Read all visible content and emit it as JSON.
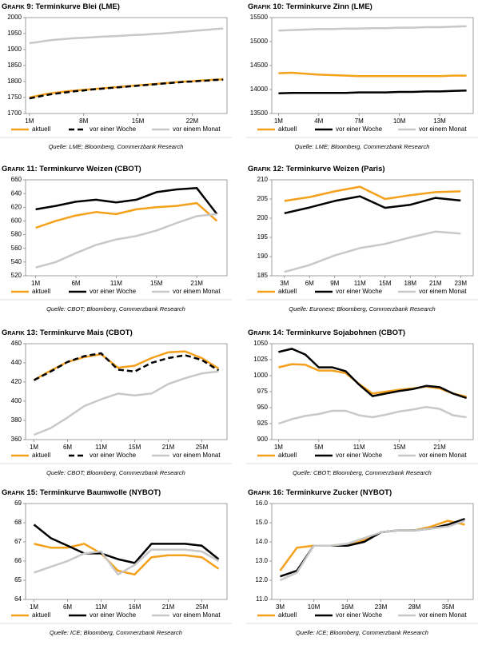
{
  "chart_data": [
    {
      "type": "line",
      "label": "Grafik 9:",
      "title": "Terminkurve Blei (LME)",
      "source": "Quelle: LME; Bloomberg, Commerzbank Research",
      "categories": [
        "1M",
        null,
        null,
        null,
        null,
        null,
        null,
        "8M",
        null,
        null,
        null,
        null,
        null,
        null,
        "15M",
        null,
        null,
        null,
        null,
        null,
        null,
        "22M",
        null,
        null,
        null,
        null
      ],
      "ylim": [
        1700,
        2000
      ],
      "yticks": [
        1700,
        1750,
        1800,
        1850,
        1900,
        1950,
        2000
      ],
      "series": [
        {
          "name": "aktuell",
          "color": "#f5a01a",
          "values": [
            1750,
            1755,
            1760,
            1764,
            1767,
            1770,
            1772,
            1774,
            1776,
            1778,
            1780,
            1782,
            1784,
            1786,
            1788,
            1790,
            1792,
            1794,
            1796,
            1798,
            1800,
            1801,
            1803,
            1804,
            1806,
            1807
          ]
        },
        {
          "name": "vor einer Woche",
          "color": "#000000",
          "dash": true,
          "values": [
            1747,
            1752,
            1757,
            1761,
            1764,
            1767,
            1770,
            1772,
            1775,
            1777,
            1779,
            1781,
            1783,
            1785,
            1787,
            1789,
            1791,
            1793,
            1795,
            1797,
            1799,
            1800,
            1802,
            1803,
            1805,
            1806
          ]
        },
        {
          "name": "vor einem Monat",
          "color": "#c8c8c8",
          "values": [
            1920,
            1923,
            1927,
            1930,
            1932,
            1934,
            1936,
            1937,
            1938,
            1940,
            1941,
            1942,
            1943,
            1945,
            1946,
            1947,
            1949,
            1950,
            1952,
            1954,
            1956,
            1958,
            1960,
            1962,
            1964,
            1966
          ]
        }
      ]
    },
    {
      "type": "line",
      "label": "Grafik 10:",
      "title": "Terminkurve Zinn (LME)",
      "source": "Quelle: LME; Bloomberg, Commerzbank Research",
      "categories": [
        "1M",
        null,
        null,
        "4M",
        null,
        null,
        "7M",
        null,
        null,
        "10M",
        null,
        null,
        "13M",
        null,
        null
      ],
      "ylim": [
        13500,
        15500
      ],
      "yticks": [
        13500,
        14000,
        14500,
        15000,
        15500
      ],
      "series": [
        {
          "name": "aktuell",
          "color": "#f5a01a",
          "values": [
            14340,
            14350,
            14330,
            14310,
            14300,
            14290,
            14280,
            14280,
            14280,
            14280,
            14280,
            14280,
            14280,
            14290,
            14290
          ]
        },
        {
          "name": "vor einer Woche",
          "color": "#000000",
          "values": [
            13920,
            13930,
            13930,
            13930,
            13930,
            13930,
            13940,
            13940,
            13940,
            13950,
            13950,
            13960,
            13960,
            13970,
            13980
          ]
        },
        {
          "name": "vor einem Monat",
          "color": "#c8c8c8",
          "values": [
            15230,
            15240,
            15250,
            15260,
            15260,
            15270,
            15270,
            15280,
            15280,
            15290,
            15290,
            15300,
            15300,
            15310,
            15320
          ]
        }
      ]
    },
    {
      "type": "line",
      "label": "Grafik 11:",
      "title": "Terminkurve Weizen (CBOT)",
      "source": "Quelle: CBOT; Bloomberg, Commerzbank Research",
      "categories": [
        "1M",
        null,
        "6M",
        null,
        "11M",
        null,
        "15M",
        null,
        "21M",
        null
      ],
      "ylim": [
        520,
        660
      ],
      "yticks": [
        520,
        540,
        560,
        580,
        600,
        620,
        640,
        660
      ],
      "series": [
        {
          "name": "aktuell",
          "color": "#f5a01a",
          "values": [
            590,
            600,
            608,
            613,
            610,
            617,
            620,
            622,
            626,
            600
          ]
        },
        {
          "name": "vor einer Woche",
          "color": "#000000",
          "values": [
            617,
            622,
            628,
            631,
            627,
            631,
            642,
            646,
            648,
            610
          ]
        },
        {
          "name": "vor einem Monat",
          "color": "#c8c8c8",
          "values": [
            532,
            540,
            553,
            565,
            573,
            578,
            586,
            597,
            607,
            610
          ]
        }
      ]
    },
    {
      "type": "line",
      "label": "Grafik 12:",
      "title": "Terminkurve Weizen (Paris)",
      "source": "Quelle: Euronext; Bloomberg, Commerzbank Research",
      "categories": [
        "3M",
        "6M",
        "9M",
        "11M",
        "15M",
        "18M",
        "21M",
        "23M"
      ],
      "ylim": [
        185,
        210
      ],
      "yticks": [
        185,
        190,
        195,
        200,
        205,
        210
      ],
      "series": [
        {
          "name": "aktuell",
          "color": "#f5a01a",
          "values": [
            204.5,
            205.5,
            207,
            208.2,
            205,
            206,
            206.8,
            207
          ]
        },
        {
          "name": "vor einer Woche",
          "color": "#000000",
          "values": [
            201.3,
            202.8,
            204.5,
            205.7,
            202.7,
            203.5,
            205.3,
            204.6
          ]
        },
        {
          "name": "vor einem Monat",
          "color": "#c8c8c8",
          "values": [
            186,
            187.8,
            190.3,
            192.2,
            193.3,
            195,
            196.5,
            196
          ]
        }
      ]
    },
    {
      "type": "line",
      "label": "Grafik 13:",
      "title": "Terminkurve Mais (CBOT)",
      "source": "Quelle: CBOT; Bloomberg, Commerzbank Research",
      "categories": [
        "1M",
        null,
        "6M",
        null,
        "11M",
        null,
        "15M",
        null,
        "21M",
        null,
        "25M",
        null
      ],
      "ylim": [
        360,
        460
      ],
      "yticks": [
        360,
        380,
        400,
        420,
        440,
        460
      ],
      "series": [
        {
          "name": "aktuell",
          "color": "#f5a01a",
          "values": [
            422,
            432,
            441,
            446,
            449,
            435,
            437,
            445,
            451,
            452,
            445,
            434
          ]
        },
        {
          "name": "vor einer Woche",
          "color": "#000000",
          "dash": true,
          "values": [
            422,
            431,
            441,
            447,
            450,
            433,
            431,
            440,
            445,
            448,
            443,
            432
          ]
        },
        {
          "name": "vor einem Monat",
          "color": "#c8c8c8",
          "values": [
            365,
            372,
            383,
            395,
            402,
            408,
            406,
            408,
            418,
            424,
            429,
            431
          ]
        }
      ]
    },
    {
      "type": "line",
      "label": "Grafik 14:",
      "title": "Terminkurve Sojabohnen (CBOT)",
      "source": "Quelle: CBOT; Bloomberg, Commerzbank Research",
      "categories": [
        "1M",
        null,
        null,
        "5M",
        null,
        null,
        "11M",
        null,
        null,
        "15M",
        null,
        null,
        "21M",
        null,
        null
      ],
      "ylim": [
        900,
        1050
      ],
      "yticks": [
        900,
        925,
        950,
        975,
        1000,
        1025,
        1050
      ],
      "series": [
        {
          "name": "aktuell",
          "color": "#f5a01a",
          "values": [
            1013,
            1018,
            1017,
            1008,
            1008,
            1004,
            987,
            972,
            975,
            978,
            980,
            983,
            980,
            972,
            967
          ]
        },
        {
          "name": "vor einer Woche",
          "color": "#000000",
          "values": [
            1037,
            1042,
            1033,
            1013,
            1013,
            1007,
            986,
            968,
            972,
            976,
            979,
            984,
            982,
            972,
            965
          ]
        },
        {
          "name": "vor einem Monat",
          "color": "#c8c8c8",
          "values": [
            925,
            932,
            937,
            940,
            945,
            945,
            938,
            935,
            939,
            944,
            947,
            951,
            948,
            938,
            935
          ]
        }
      ]
    },
    {
      "type": "line",
      "label": "Grafik 15:",
      "title": "Terminkurve Baumwolle (NYBOT)",
      "source": "Quelle: ICE; Bloomberg, Commerzbank Research",
      "categories": [
        "1M",
        null,
        "6M",
        null,
        "11M",
        null,
        "16M",
        null,
        "21M",
        null,
        "25M",
        null
      ],
      "ylim": [
        64,
        69
      ],
      "yticks": [
        64,
        65,
        66,
        67,
        68,
        69
      ],
      "series": [
        {
          "name": "aktuell",
          "color": "#f5a01a",
          "values": [
            66.9,
            66.7,
            66.7,
            66.9,
            66.4,
            65.5,
            65.3,
            66.2,
            66.3,
            66.3,
            66.2,
            65.6
          ]
        },
        {
          "name": "vor einer Woche",
          "color": "#000000",
          "values": [
            67.9,
            67.2,
            66.8,
            66.4,
            66.4,
            66.1,
            65.9,
            66.9,
            66.9,
            66.9,
            66.8,
            66.1
          ]
        },
        {
          "name": "vor einem Monat",
          "color": "#c8c8c8",
          "values": [
            65.4,
            65.7,
            66,
            66.4,
            66.5,
            65.3,
            65.8,
            66.6,
            66.6,
            66.6,
            66.5,
            66
          ]
        }
      ]
    },
    {
      "type": "line",
      "label": "Grafik 16:",
      "title": "Terminkurve Zucker (NYBOT)",
      "source": "Quelle: ICE; Bloomberg, Commerzbank Research",
      "categories": [
        "3M",
        null,
        "10M",
        null,
        "16M",
        null,
        "23M",
        null,
        "28M",
        null,
        "35M",
        null
      ],
      "ylim": [
        11,
        16
      ],
      "yticks": [
        {
          "value": 11,
          "label": "11.0"
        },
        {
          "value": 12,
          "label": "12.0"
        },
        {
          "value": 13,
          "label": "13.0"
        },
        {
          "value": 14,
          "label": "14.0"
        },
        {
          "value": 15,
          "label": "15.0"
        },
        {
          "value": 16,
          "label": "16.0"
        }
      ],
      "series": [
        {
          "name": "aktuell",
          "color": "#f5a01a",
          "values": [
            12.5,
            13.7,
            13.8,
            13.8,
            13.9,
            14.1,
            14.5,
            14.6,
            14.6,
            14.8,
            15.1,
            14.9
          ]
        },
        {
          "name": "vor einer Woche",
          "color": "#000000",
          "values": [
            12.2,
            12.5,
            13.8,
            13.8,
            13.8,
            14,
            14.5,
            14.6,
            14.6,
            14.7,
            14.9,
            15.2
          ]
        },
        {
          "name": "vor einem Monat",
          "color": "#c8c8c8",
          "values": [
            12,
            12.4,
            13.8,
            13.8,
            13.9,
            14.2,
            14.5,
            14.6,
            14.6,
            14.7,
            14.8,
            15.1
          ]
        }
      ]
    }
  ]
}
